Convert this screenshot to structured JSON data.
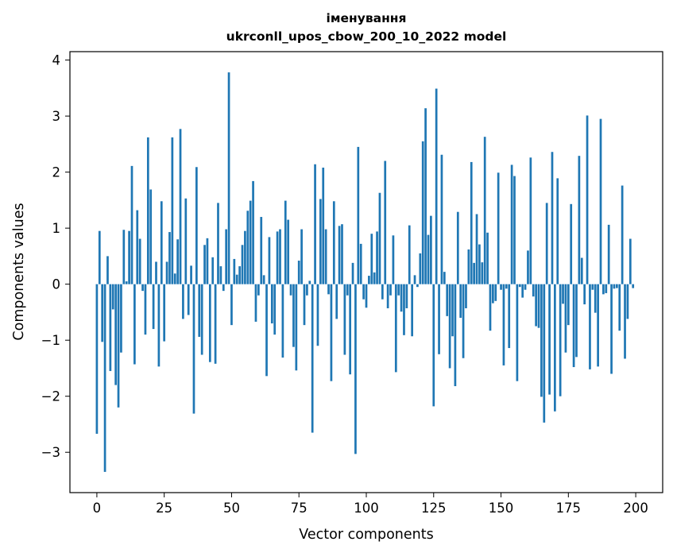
{
  "chart_data": {
    "type": "bar",
    "title": "іменування",
    "subtitle": "ukrconll_upos_cbow_200_10_2022 model",
    "xlabel": "Vector components",
    "ylabel": "Components values",
    "xlim": [
      -10,
      210
    ],
    "ylim": [
      -3.72,
      4.15
    ],
    "x_ticks": [
      0,
      25,
      50,
      75,
      100,
      125,
      150,
      175,
      200
    ],
    "y_ticks": [
      -3,
      -2,
      -1,
      0,
      1,
      2,
      3,
      4
    ],
    "grid": false,
    "bar_color": "#1f77b4",
    "x": [
      0,
      1,
      2,
      3,
      4,
      5,
      6,
      7,
      8,
      9,
      10,
      11,
      12,
      13,
      14,
      15,
      16,
      17,
      18,
      19,
      20,
      21,
      22,
      23,
      24,
      25,
      26,
      27,
      28,
      29,
      30,
      31,
      32,
      33,
      34,
      35,
      36,
      37,
      38,
      39,
      40,
      41,
      42,
      43,
      44,
      45,
      46,
      47,
      48,
      49,
      50,
      51,
      52,
      53,
      54,
      55,
      56,
      57,
      58,
      59,
      60,
      61,
      62,
      63,
      64,
      65,
      66,
      67,
      68,
      69,
      70,
      71,
      72,
      73,
      74,
      75,
      76,
      77,
      78,
      79,
      80,
      81,
      82,
      83,
      84,
      85,
      86,
      87,
      88,
      89,
      90,
      91,
      92,
      93,
      94,
      95,
      96,
      97,
      98,
      99,
      100,
      101,
      102,
      103,
      104,
      105,
      106,
      107,
      108,
      109,
      110,
      111,
      112,
      113,
      114,
      115,
      116,
      117,
      118,
      119,
      120,
      121,
      122,
      123,
      124,
      125,
      126,
      127,
      128,
      129,
      130,
      131,
      132,
      133,
      134,
      135,
      136,
      137,
      138,
      139,
      140,
      141,
      142,
      143,
      144,
      145,
      146,
      147,
      148,
      149,
      150,
      151,
      152,
      153,
      154,
      155,
      156,
      157,
      158,
      159,
      160,
      161,
      162,
      163,
      164,
      165,
      166,
      167,
      168,
      169,
      170,
      171,
      172,
      173,
      174,
      175,
      176,
      177,
      178,
      179,
      180,
      181,
      182,
      183,
      184,
      185,
      186,
      187,
      188,
      189,
      190,
      191,
      192,
      193,
      194,
      195,
      196,
      197,
      198,
      199
    ],
    "values": [
      -2.67,
      0.95,
      -1.03,
      -3.35,
      0.5,
      -1.55,
      -0.45,
      -1.8,
      -2.2,
      -1.22,
      0.97,
      0.05,
      0.95,
      2.11,
      -1.43,
      1.32,
      0.81,
      -0.12,
      -0.9,
      2.62,
      1.69,
      -0.8,
      0.4,
      -1.47,
      1.48,
      -1.02,
      0.4,
      0.93,
      2.62,
      0.19,
      0.8,
      2.77,
      -0.62,
      1.53,
      -0.55,
      0.33,
      -2.31,
      2.09,
      -0.94,
      -1.26,
      0.7,
      0.82,
      -1.39,
      0.48,
      -1.42,
      1.45,
      0.32,
      -0.12,
      0.98,
      3.78,
      -0.73,
      0.45,
      0.17,
      0.32,
      0.7,
      0.95,
      1.31,
      1.49,
      1.84,
      -0.67,
      -0.2,
      1.2,
      0.16,
      -1.64,
      0.84,
      -0.7,
      -0.9,
      0.94,
      0.98,
      -1.31,
      1.49,
      1.15,
      -0.2,
      -1.12,
      -1.54,
      0.42,
      0.98,
      -0.73,
      -0.2,
      0.06,
      -2.65,
      2.14,
      -1.1,
      1.52,
      2.08,
      0.98,
      -0.18,
      -1.73,
      1.48,
      -0.62,
      1.04,
      1.07,
      -1.26,
      -0.2,
      -1.61,
      0.38,
      -3.03,
      2.45,
      0.72,
      -0.27,
      -0.42,
      0.15,
      0.9,
      0.21,
      0.94,
      1.63,
      -0.27,
      2.2,
      -0.43,
      -0.2,
      0.87,
      -1.57,
      -0.2,
      -0.49,
      -0.91,
      -0.43,
      1.05,
      -0.93,
      0.16,
      -0.05,
      0.55,
      2.55,
      3.14,
      0.88,
      1.22,
      -2.18,
      3.49,
      -1.25,
      2.31,
      0.22,
      -0.57,
      -1.5,
      -0.93,
      -1.82,
      1.29,
      -0.6,
      -1.32,
      -0.43,
      0.62,
      2.18,
      0.38,
      1.25,
      0.71,
      0.39,
      2.63,
      0.92,
      -0.83,
      -0.34,
      -0.3,
      1.99,
      -0.1,
      -1.45,
      -0.08,
      -1.14,
      2.13,
      1.93,
      -1.73,
      -0.05,
      -0.24,
      -0.1,
      0.6,
      2.26,
      -0.22,
      -0.75,
      -0.78,
      -2.01,
      -2.47,
      1.45,
      -1.97,
      2.36,
      -2.27,
      1.89,
      -2.0,
      -0.35,
      -1.22,
      -0.73,
      1.43,
      -1.48,
      -1.3,
      2.29,
      0.47,
      -0.36,
      3.01,
      -1.52,
      -0.1,
      -0.51,
      -1.47,
      2.95,
      -0.18,
      -0.16,
      1.06,
      -1.6,
      -0.08,
      -0.07,
      -0.83,
      1.76,
      -1.33,
      -0.62,
      0.81,
      -0.07
    ]
  }
}
